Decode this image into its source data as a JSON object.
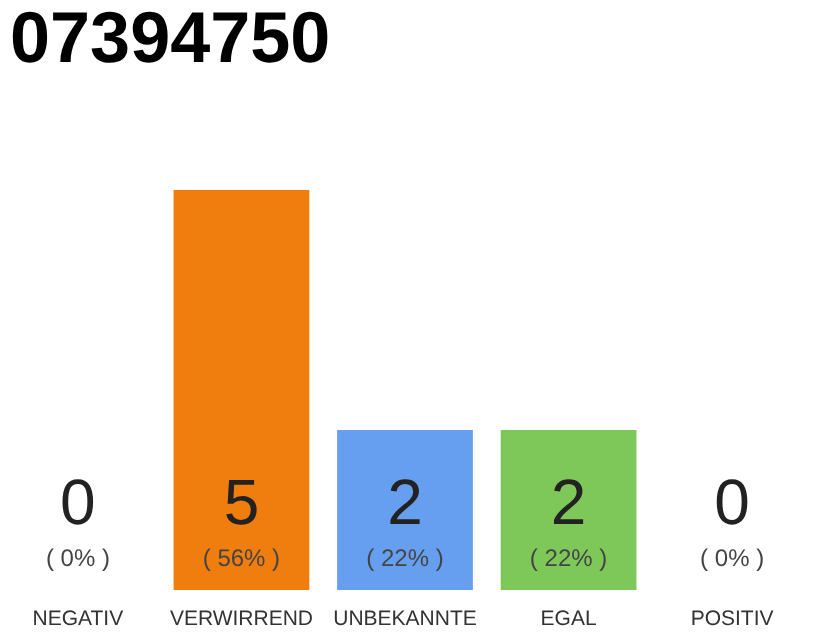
{
  "chart_data": {
    "type": "bar",
    "title": "07394750",
    "categories": [
      "NEGATIV",
      "VERWIRREND",
      "UNBEKANNTE",
      "EGAL",
      "POSITIV"
    ],
    "values": [
      0,
      5,
      2,
      2,
      0
    ],
    "colors": [
      "#e8203a",
      "#f07e0e",
      "#679ff0",
      "#7ec85a",
      "#2aa84a"
    ],
    "ylim": [
      0,
      5
    ],
    "data_labels": true,
    "annotations": [
      "( 0% )",
      "( 56% )",
      "( 22% )",
      "( 22% )",
      "( 0% )"
    ]
  }
}
